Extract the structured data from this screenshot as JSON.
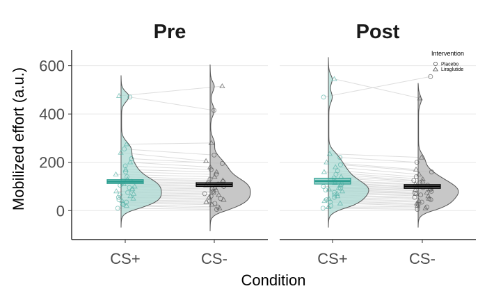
{
  "chart_data": {
    "type": "raincloud",
    "panels": [
      "Pre",
      "Post"
    ],
    "categories": [
      "CS+",
      "CS-"
    ],
    "xlabel": "Condition",
    "ylabel": "Mobilized effort (a.u.)",
    "ylim": [
      -120,
      665
    ],
    "yticks": [
      0,
      200,
      400,
      600
    ],
    "grid": true,
    "legend": {
      "title": "Intervention",
      "placement": "top-right",
      "entries": [
        {
          "name": "Placebo",
          "marker": "circle"
        },
        {
          "name": "Liraglutide",
          "marker": "triangle"
        }
      ]
    },
    "colors": {
      "CS+": "#2a9d8f",
      "CS-": "#000000",
      "CS-_fill": "#bdbdbd",
      "CS+_fill": "#a8d8d2"
    },
    "summary": [
      {
        "panel": "Pre",
        "category": "CS+",
        "center": 120,
        "lower": 112,
        "upper": 128
      },
      {
        "panel": "Pre",
        "category": "CS-",
        "center": 108,
        "lower": 100,
        "upper": 116
      },
      {
        "panel": "Post",
        "category": "CS+",
        "center": 122,
        "lower": 110,
        "upper": 134
      },
      {
        "panel": "Post",
        "category": "CS-",
        "center": 100,
        "lower": 92,
        "upper": 108
      }
    ],
    "violin_range": [
      {
        "panel": "Pre",
        "category": "CS+",
        "min": -70,
        "max": 560
      },
      {
        "panel": "Pre",
        "category": "CS-",
        "min": -85,
        "max": 605
      },
      {
        "panel": "Post",
        "category": "CS+",
        "min": -70,
        "max": 635
      },
      {
        "panel": "Post",
        "category": "CS-",
        "min": -70,
        "max": 528
      }
    ],
    "subjects": [
      {
        "pre_csp": 475,
        "pre_csm": 515,
        "post_csp": 545,
        "post_csm": 465,
        "group": "Liraglutide"
      },
      {
        "pre_csp": 470,
        "pre_csm": 415,
        "post_csp": 470,
        "post_csm": 555,
        "group": "Placebo"
      },
      {
        "pre_csp": 275,
        "pre_csm": 280,
        "post_csp": 235,
        "post_csm": 220,
        "group": "Liraglutide"
      },
      {
        "pre_csp": 255,
        "pre_csm": 230,
        "post_csp": 220,
        "post_csm": 200,
        "group": "Placebo"
      },
      {
        "pre_csp": 240,
        "pre_csm": 205,
        "post_csp": 200,
        "post_csm": 170,
        "group": "Liraglutide"
      },
      {
        "pre_csp": 215,
        "pre_csm": 195,
        "post_csp": 190,
        "post_csm": 160,
        "group": "Placebo"
      },
      {
        "pre_csp": 200,
        "pre_csm": 180,
        "post_csp": 180,
        "post_csm": 150,
        "group": "Liraglutide"
      },
      {
        "pre_csp": 185,
        "pre_csm": 170,
        "post_csp": 165,
        "post_csm": 140,
        "group": "Placebo"
      },
      {
        "pre_csp": 170,
        "pre_csm": 160,
        "post_csp": 160,
        "post_csm": 130,
        "group": "Liraglutide"
      },
      {
        "pre_csp": 160,
        "pre_csm": 150,
        "post_csp": 150,
        "post_csm": 125,
        "group": "Placebo"
      },
      {
        "pre_csp": 150,
        "pre_csm": 140,
        "post_csp": 140,
        "post_csm": 120,
        "group": "Liraglutide"
      },
      {
        "pre_csp": 140,
        "pre_csm": 130,
        "post_csp": 135,
        "post_csm": 115,
        "group": "Placebo"
      },
      {
        "pre_csp": 130,
        "pre_csm": 125,
        "post_csp": 125,
        "post_csm": 110,
        "group": "Liraglutide"
      },
      {
        "pre_csp": 125,
        "pre_csm": 120,
        "post_csp": 120,
        "post_csm": 105,
        "group": "Placebo"
      },
      {
        "pre_csp": 120,
        "pre_csm": 115,
        "post_csp": 115,
        "post_csm": 100,
        "group": "Liraglutide"
      },
      {
        "pre_csp": 115,
        "pre_csm": 110,
        "post_csp": 110,
        "post_csm": 95,
        "group": "Placebo"
      },
      {
        "pre_csp": 110,
        "pre_csm": 105,
        "post_csp": 105,
        "post_csm": 90,
        "group": "Liraglutide"
      },
      {
        "pre_csp": 105,
        "pre_csm": 100,
        "post_csp": 100,
        "post_csm": 88,
        "group": "Placebo"
      },
      {
        "pre_csp": 100,
        "pre_csm": 95,
        "post_csp": 95,
        "post_csm": 85,
        "group": "Liraglutide"
      },
      {
        "pre_csp": 95,
        "pre_csm": 90,
        "post_csp": 92,
        "post_csm": 80,
        "group": "Placebo"
      },
      {
        "pre_csp": 90,
        "pre_csm": 85,
        "post_csp": 88,
        "post_csm": 75,
        "group": "Liraglutide"
      },
      {
        "pre_csp": 85,
        "pre_csm": 80,
        "post_csp": 85,
        "post_csm": 72,
        "group": "Placebo"
      },
      {
        "pre_csp": 80,
        "pre_csm": 75,
        "post_csp": 80,
        "post_csm": 70,
        "group": "Liraglutide"
      },
      {
        "pre_csp": 75,
        "pre_csm": 70,
        "post_csp": 75,
        "post_csm": 65,
        "group": "Placebo"
      },
      {
        "pre_csp": 70,
        "pre_csm": 65,
        "post_csp": 70,
        "post_csm": 60,
        "group": "Liraglutide"
      },
      {
        "pre_csp": 65,
        "pre_csm": 60,
        "post_csp": 65,
        "post_csm": 55,
        "group": "Placebo"
      },
      {
        "pre_csp": 60,
        "pre_csm": 55,
        "post_csp": 60,
        "post_csm": 50,
        "group": "Liraglutide"
      },
      {
        "pre_csp": 55,
        "pre_csm": 50,
        "post_csp": 55,
        "post_csm": 45,
        "group": "Placebo"
      },
      {
        "pre_csp": 50,
        "pre_csm": 45,
        "post_csp": 50,
        "post_csm": 40,
        "group": "Liraglutide"
      },
      {
        "pre_csp": 45,
        "pre_csm": 40,
        "post_csp": 45,
        "post_csm": 35,
        "group": "Placebo"
      },
      {
        "pre_csp": 40,
        "pre_csm": 35,
        "post_csp": 40,
        "post_csm": 30,
        "group": "Liraglutide"
      },
      {
        "pre_csp": 35,
        "pre_csm": 30,
        "post_csp": 35,
        "post_csm": 25,
        "group": "Placebo"
      },
      {
        "pre_csp": 30,
        "pre_csm": 25,
        "post_csp": 30,
        "post_csm": 20,
        "group": "Liraglutide"
      },
      {
        "pre_csp": 25,
        "pre_csm": 15,
        "post_csp": 20,
        "post_csm": 15,
        "group": "Placebo"
      },
      {
        "pre_csp": 20,
        "pre_csm": 10,
        "post_csp": 15,
        "post_csm": 10,
        "group": "Liraglutide"
      },
      {
        "pre_csp": 10,
        "pre_csm": 5,
        "post_csp": 10,
        "post_csm": 5,
        "group": "Placebo"
      }
    ]
  }
}
